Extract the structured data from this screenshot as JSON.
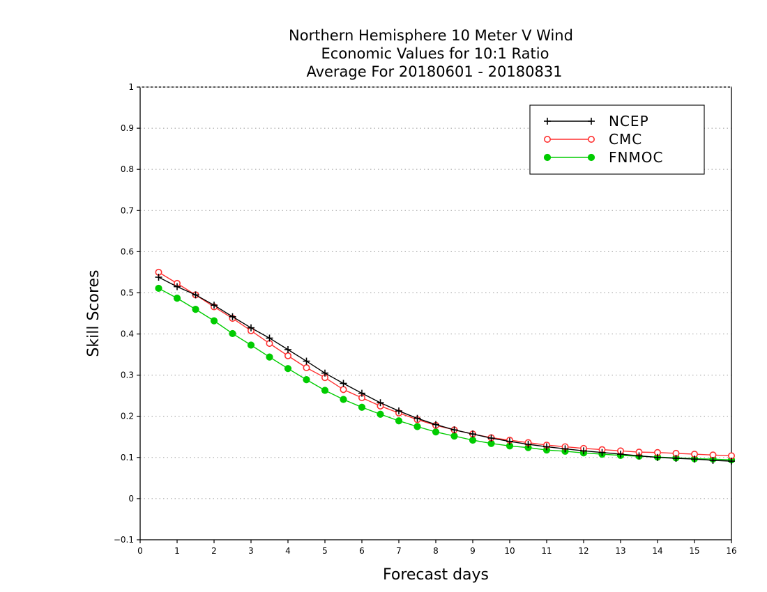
{
  "chart_data": {
    "type": "line",
    "title_lines": [
      "Northern Hemisphere 10 Meter V Wind",
      "Economic Values for 10:1 Ratio",
      "Average For 20180601 - 20180831"
    ],
    "xlabel": "Forecast days",
    "ylabel": "Skill Scores",
    "xlim": [
      0,
      16
    ],
    "ylim": [
      -0.1,
      1
    ],
    "xticks": [
      0,
      1,
      2,
      3,
      4,
      5,
      6,
      7,
      8,
      9,
      10,
      11,
      12,
      13,
      14,
      15,
      16
    ],
    "xtick_labels": [
      "0",
      "1",
      "2",
      "3",
      "4",
      "5",
      "6",
      "7",
      "8",
      "9",
      "10",
      "11",
      "12",
      "13",
      "14",
      "15",
      "16"
    ],
    "yticks": [
      -0.1,
      0,
      0.1,
      0.2,
      0.3,
      0.4,
      0.5,
      0.6,
      0.7,
      0.8,
      0.9,
      1
    ],
    "ytick_labels": [
      "−0.1",
      "0",
      "0.1",
      "0.2",
      "0.3",
      "0.4",
      "0.5",
      "0.6",
      "0.7",
      "0.8",
      "0.9",
      "1"
    ],
    "grid": "horizontal dotted",
    "legend_position": "top-right",
    "x": [
      0.5,
      1,
      1.5,
      2,
      2.5,
      3,
      3.5,
      4,
      4.5,
      5,
      5.5,
      6,
      6.5,
      7,
      7.5,
      8,
      8.5,
      9,
      9.5,
      10,
      10.5,
      11,
      11.5,
      12,
      12.5,
      13,
      13.5,
      14,
      14.5,
      15,
      15.5,
      16
    ],
    "series": [
      {
        "name": "NCEP",
        "color": "#000000",
        "marker": "plus",
        "values": [
          0.538,
          0.515,
          0.495,
          0.47,
          0.442,
          0.415,
          0.39,
          0.362,
          0.334,
          0.305,
          0.28,
          0.256,
          0.233,
          0.213,
          0.195,
          0.18,
          0.167,
          0.157,
          0.147,
          0.139,
          0.132,
          0.126,
          0.121,
          0.116,
          0.112,
          0.108,
          0.104,
          0.1,
          0.098,
          0.096,
          0.093,
          0.091
        ]
      },
      {
        "name": "CMC",
        "color": "#ff3030",
        "marker": "open-circle",
        "values": [
          0.55,
          0.523,
          0.495,
          0.466,
          0.438,
          0.408,
          0.377,
          0.347,
          0.318,
          0.294,
          0.265,
          0.245,
          0.225,
          0.208,
          0.192,
          0.178,
          0.167,
          0.157,
          0.148,
          0.142,
          0.136,
          0.13,
          0.126,
          0.122,
          0.119,
          0.116,
          0.113,
          0.112,
          0.11,
          0.108,
          0.106,
          0.104
        ]
      },
      {
        "name": "FNMOC",
        "color": "#00cc00",
        "marker": "filled-circle",
        "values": [
          0.511,
          0.487,
          0.46,
          0.432,
          0.401,
          0.373,
          0.344,
          0.316,
          0.289,
          0.263,
          0.241,
          0.222,
          0.205,
          0.189,
          0.175,
          0.162,
          0.152,
          0.142,
          0.134,
          0.128,
          0.124,
          0.118,
          0.115,
          0.111,
          0.108,
          0.105,
          0.103,
          0.101,
          0.099,
          0.097,
          0.096,
          0.094
        ]
      }
    ]
  }
}
